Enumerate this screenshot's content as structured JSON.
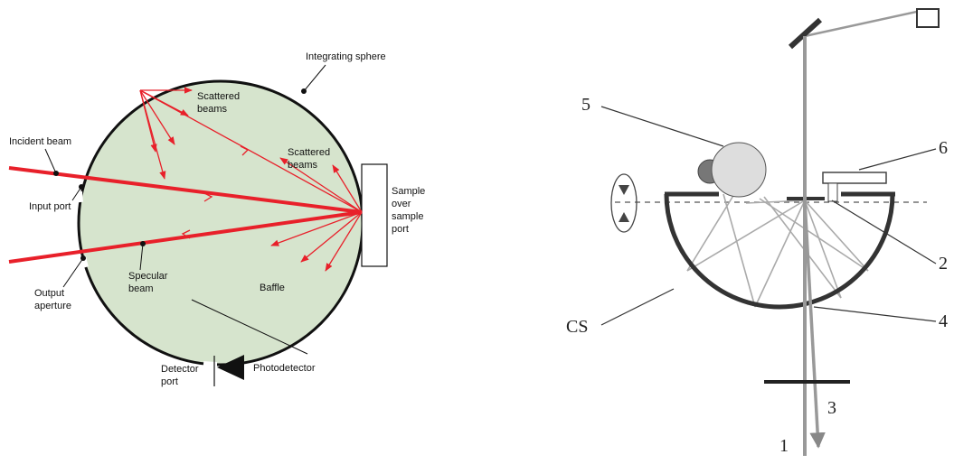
{
  "left": {
    "integrating_sphere": "Integrating sphere",
    "scattered_top": [
      "Scattered",
      "beams"
    ],
    "scattered_right": [
      "Scattered",
      "beams"
    ],
    "incident_beam": "Incident beam",
    "input_port": "Input port",
    "sample": [
      "Sample",
      "over",
      "sample",
      "port"
    ],
    "output_aperture": [
      "Output",
      "aperture"
    ],
    "specular_beam": [
      "Specular",
      "beam"
    ],
    "baffle": "Baffle",
    "detector_port": [
      "Detector",
      "port"
    ],
    "photodetector": "Photodetector"
  },
  "right": {
    "label_5": "5",
    "label_6": "6",
    "label_2": "2",
    "label_4": "4",
    "label_cs": "CS",
    "label_3": "3",
    "label_1": "1"
  }
}
